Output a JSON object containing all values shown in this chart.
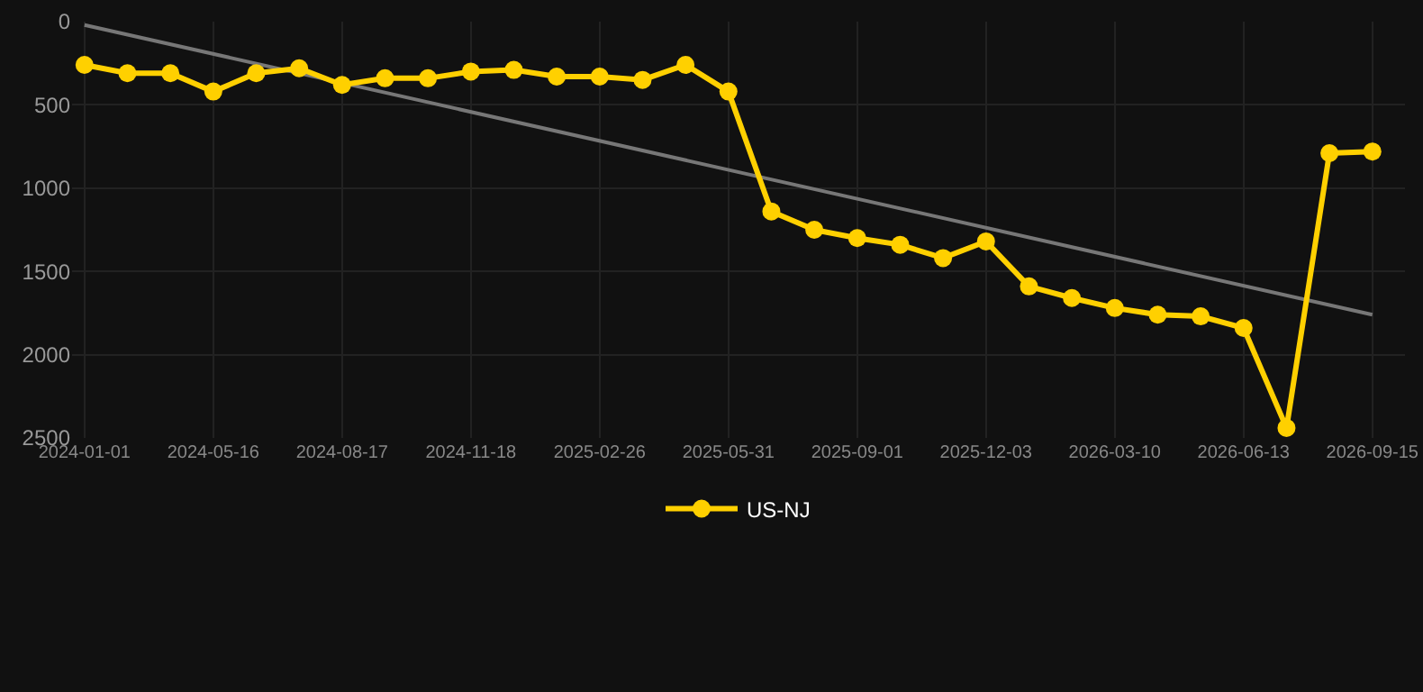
{
  "chart_data": {
    "type": "line",
    "categories": [
      "2024-01-01",
      null,
      null,
      "2024-05-16",
      null,
      null,
      "2024-08-17",
      null,
      null,
      "2024-11-18",
      null,
      null,
      "2025-02-26",
      null,
      null,
      "2025-05-31",
      null,
      null,
      "2025-09-01",
      null,
      null,
      "2025-12-03",
      null,
      null,
      "2026-03-10",
      null,
      null,
      "2026-06-13",
      null,
      null,
      "2026-09-15"
    ],
    "series": [
      {
        "name": "US-NJ",
        "color": "#ffd000",
        "values": [
          260,
          310,
          310,
          420,
          310,
          280,
          380,
          340,
          340,
          300,
          290,
          330,
          330,
          350,
          260,
          420,
          1140,
          1250,
          1300,
          1340,
          1420,
          1320,
          1590,
          1660,
          1720,
          1760,
          1770,
          1840,
          2440,
          790,
          780
        ]
      },
      {
        "type": "line",
        "color": "#777777",
        "marker": "none",
        "values": [
          20,
          null,
          null,
          null,
          null,
          null,
          null,
          null,
          null,
          null,
          null,
          null,
          null,
          null,
          null,
          null,
          null,
          null,
          null,
          null,
          null,
          null,
          null,
          null,
          null,
          null,
          null,
          null,
          null,
          null,
          1760
        ]
      }
    ],
    "ylim": [
      2500,
      0
    ],
    "yticks": [
      0,
      500,
      1000,
      1500,
      2000,
      2500
    ],
    "grid": true,
    "legend": "bottom",
    "marker": "circle",
    "line_style": "solid"
  }
}
